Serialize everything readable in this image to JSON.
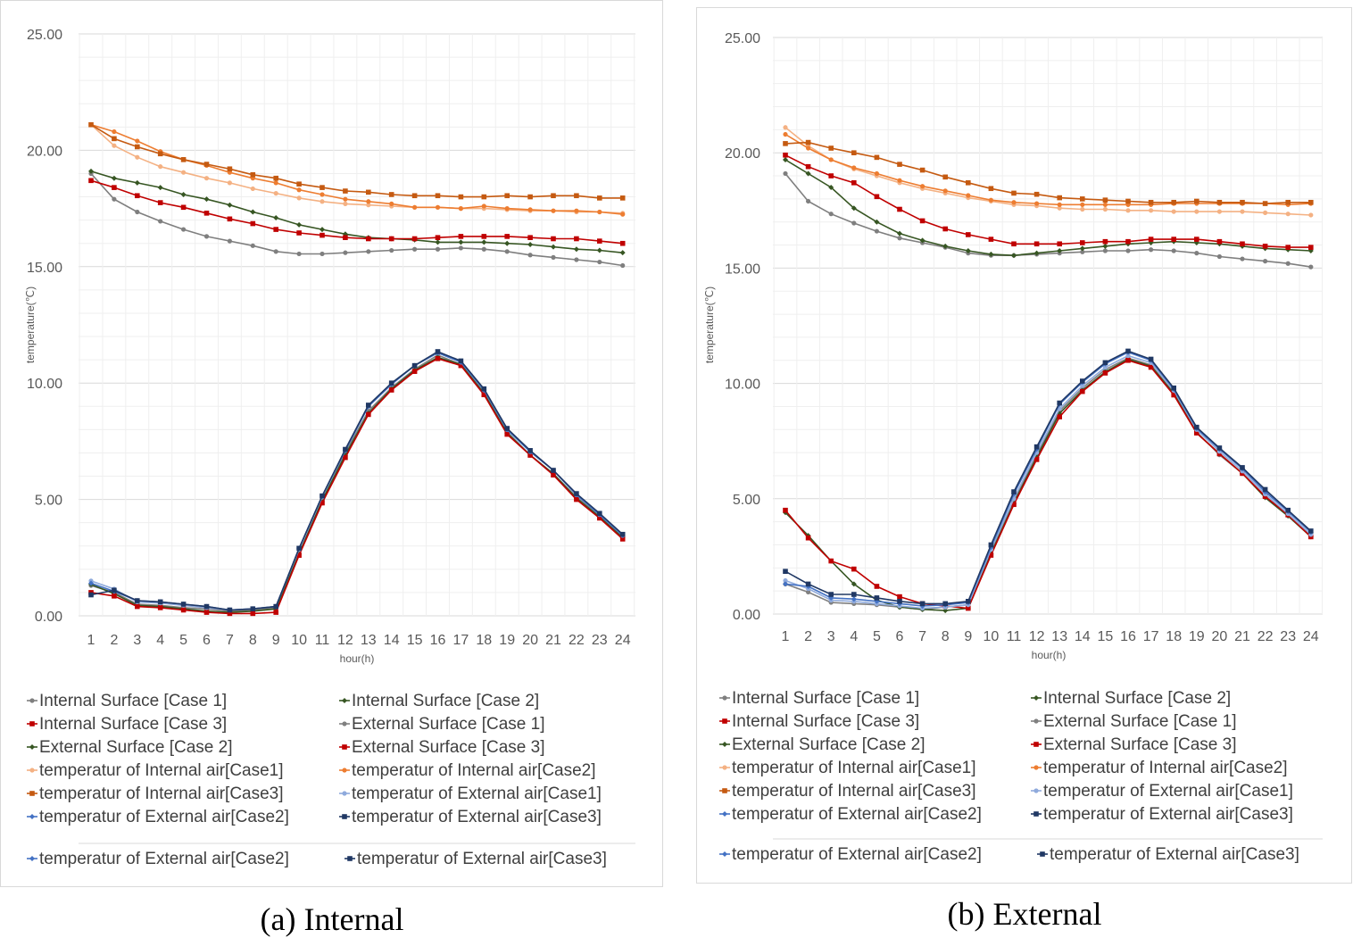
{
  "chart_data": [
    {
      "type": "line",
      "caption": "(a) Internal",
      "xlabel": "hour(h)",
      "ylabel": "temperature(℃)",
      "ylim": [
        0,
        25
      ],
      "yticks": [
        "0.00",
        "5.00",
        "10.00",
        "15.00",
        "20.00",
        "25.00"
      ],
      "categories": [
        "1",
        "2",
        "3",
        "4",
        "5",
        "6",
        "7",
        "8",
        "9",
        "10",
        "11",
        "12",
        "13",
        "14",
        "15",
        "16",
        "17",
        "18",
        "19",
        "20",
        "21",
        "22",
        "23",
        "24"
      ],
      "legend_extra": [
        "temperatur of External air[Case2]",
        "temperatur of External air[Case3]"
      ],
      "series": [
        {
          "name": "Internal Surface [Case 1]",
          "color": "#7f7f7f",
          "marker": "circle",
          "values": [
            19.0,
            17.9,
            17.35,
            16.95,
            16.6,
            16.3,
            16.1,
            15.9,
            15.65,
            15.55,
            15.55,
            15.6,
            15.65,
            15.7,
            15.75,
            15.75,
            15.8,
            15.75,
            15.65,
            15.5,
            15.4,
            15.3,
            15.2,
            15.05
          ]
        },
        {
          "name": "Internal Surface [Case 2]",
          "color": "#375623",
          "marker": "diamond",
          "values": [
            19.1,
            18.8,
            18.6,
            18.4,
            18.1,
            17.9,
            17.65,
            17.35,
            17.1,
            16.8,
            16.6,
            16.4,
            16.25,
            16.2,
            16.15,
            16.05,
            16.05,
            16.05,
            16.0,
            15.95,
            15.85,
            15.75,
            15.7,
            15.6
          ]
        },
        {
          "name": "Internal Surface [Case 3]",
          "color": "#c00000",
          "marker": "square",
          "values": [
            18.7,
            18.4,
            18.05,
            17.75,
            17.55,
            17.3,
            17.05,
            16.85,
            16.6,
            16.45,
            16.35,
            16.25,
            16.2,
            16.2,
            16.2,
            16.25,
            16.3,
            16.3,
            16.3,
            16.25,
            16.2,
            16.2,
            16.1,
            16.0
          ]
        },
        {
          "name": "External Surface [Case 1]",
          "color": "#808080",
          "marker": "circle",
          "values": [
            1.3,
            1.0,
            0.5,
            0.45,
            0.35,
            0.3,
            0.2,
            0.25,
            0.35,
            2.7,
            5.0,
            7.0,
            8.8,
            9.8,
            10.6,
            11.2,
            10.8,
            9.6,
            7.9,
            6.9,
            6.1,
            5.1,
            4.3,
            3.4
          ]
        },
        {
          "name": "External Surface [Case 2]",
          "color": "#375623",
          "marker": "diamond",
          "values": [
            1.35,
            0.95,
            0.45,
            0.4,
            0.3,
            0.2,
            0.15,
            0.2,
            0.3,
            2.65,
            4.95,
            6.9,
            8.7,
            9.75,
            10.55,
            11.1,
            10.8,
            9.55,
            7.85,
            6.9,
            6.1,
            5.05,
            4.25,
            3.35
          ]
        },
        {
          "name": "External Surface [Case 3]",
          "color": "#c00000",
          "marker": "square",
          "values": [
            1.0,
            0.85,
            0.4,
            0.35,
            0.25,
            0.15,
            0.1,
            0.1,
            0.15,
            2.6,
            4.85,
            6.8,
            8.65,
            9.7,
            10.5,
            11.05,
            10.75,
            9.5,
            7.8,
            6.9,
            6.05,
            5.0,
            4.2,
            3.3
          ]
        },
        {
          "name": "temperatur of Internal air[Case1]",
          "color": "#f4b183",
          "marker": "circle",
          "values": [
            21.1,
            20.2,
            19.7,
            19.3,
            19.05,
            18.8,
            18.6,
            18.35,
            18.15,
            17.95,
            17.8,
            17.7,
            17.65,
            17.6,
            17.55,
            17.55,
            17.5,
            17.5,
            17.45,
            17.4,
            17.4,
            17.35,
            17.35,
            17.3
          ]
        },
        {
          "name": "temperatur of Internal air[Case2]",
          "color": "#ed7d31",
          "marker": "circle",
          "values": [
            21.1,
            20.8,
            20.4,
            19.95,
            19.6,
            19.35,
            19.05,
            18.8,
            18.6,
            18.3,
            18.1,
            17.9,
            17.8,
            17.7,
            17.55,
            17.55,
            17.5,
            17.6,
            17.5,
            17.45,
            17.4,
            17.4,
            17.35,
            17.25
          ]
        },
        {
          "name": "temperatur of Internal air[Case3]",
          "color": "#c55a11",
          "marker": "square",
          "values": [
            21.1,
            20.5,
            20.15,
            19.85,
            19.6,
            19.4,
            19.2,
            18.95,
            18.8,
            18.55,
            18.4,
            18.25,
            18.2,
            18.1,
            18.05,
            18.05,
            18.0,
            18.0,
            18.05,
            18.0,
            18.05,
            18.05,
            17.95,
            17.95
          ]
        },
        {
          "name": "temperatur of External air[Case1]",
          "color": "#8faadc",
          "marker": "circle",
          "values": [
            1.5,
            1.15,
            0.6,
            0.55,
            0.45,
            0.35,
            0.25,
            0.3,
            0.4,
            2.85,
            5.1,
            7.1,
            9.0,
            9.95,
            10.75,
            11.3,
            10.9,
            9.7,
            8.0,
            7.05,
            6.25,
            5.2,
            4.35,
            3.45
          ]
        },
        {
          "name": "temperatur of External air[Case2]",
          "color": "#4472c4",
          "marker": "diamond",
          "values": [
            1.4,
            1.05,
            0.65,
            0.6,
            0.5,
            0.4,
            0.25,
            0.3,
            0.4,
            2.9,
            5.15,
            7.1,
            9.0,
            9.95,
            10.75,
            11.3,
            10.9,
            9.7,
            8.0,
            7.05,
            6.25,
            5.2,
            4.35,
            3.45
          ]
        },
        {
          "name": "temperatur of External air[Case3]",
          "color": "#203864",
          "marker": "square",
          "values": [
            0.9,
            1.1,
            0.65,
            0.6,
            0.5,
            0.4,
            0.25,
            0.3,
            0.4,
            2.9,
            5.15,
            7.15,
            9.05,
            10.0,
            10.75,
            11.35,
            10.95,
            9.75,
            8.05,
            7.1,
            6.25,
            5.25,
            4.4,
            3.5
          ]
        }
      ]
    },
    {
      "type": "line",
      "caption": "(b) External",
      "xlabel": "hour(h)",
      "ylabel": "temperature(℃)",
      "ylim": [
        0,
        25
      ],
      "yticks": [
        "0.00",
        "5.00",
        "10.00",
        "15.00",
        "20.00",
        "25.00"
      ],
      "categories": [
        "1",
        "2",
        "3",
        "4",
        "5",
        "6",
        "7",
        "8",
        "9",
        "10",
        "11",
        "12",
        "13",
        "14",
        "15",
        "16",
        "17",
        "18",
        "19",
        "20",
        "21",
        "22",
        "23",
        "24"
      ],
      "legend_extra": [
        "temperatur of External air[Case2]",
        "temperatur of External air[Case3]"
      ],
      "series": [
        {
          "name": "Internal Surface [Case 1]",
          "color": "#7f7f7f",
          "marker": "circle",
          "values": [
            19.1,
            17.9,
            17.35,
            16.95,
            16.6,
            16.3,
            16.1,
            15.9,
            15.65,
            15.55,
            15.55,
            15.6,
            15.65,
            15.7,
            15.75,
            15.75,
            15.8,
            15.75,
            15.65,
            15.5,
            15.4,
            15.3,
            15.2,
            15.05
          ]
        },
        {
          "name": "Internal Surface [Case 2]",
          "color": "#375623",
          "marker": "diamond",
          "values": [
            19.7,
            19.1,
            18.5,
            17.6,
            17.0,
            16.5,
            16.2,
            15.95,
            15.75,
            15.6,
            15.55,
            15.65,
            15.75,
            15.85,
            15.95,
            16.05,
            16.1,
            16.15,
            16.1,
            16.05,
            15.95,
            15.85,
            15.8,
            15.75
          ]
        },
        {
          "name": "Internal Surface [Case 3]",
          "color": "#c00000",
          "marker": "square",
          "values": [
            19.9,
            19.4,
            19.0,
            18.7,
            18.1,
            17.55,
            17.05,
            16.7,
            16.45,
            16.25,
            16.05,
            16.05,
            16.05,
            16.1,
            16.15,
            16.15,
            16.25,
            16.25,
            16.25,
            16.15,
            16.05,
            15.95,
            15.9,
            15.9
          ]
        },
        {
          "name": "External Surface [Case 1]",
          "color": "#808080",
          "marker": "circle",
          "values": [
            1.3,
            0.95,
            0.5,
            0.45,
            0.4,
            0.3,
            0.2,
            0.3,
            0.4,
            2.7,
            4.9,
            6.9,
            8.8,
            9.8,
            10.6,
            11.1,
            10.8,
            9.6,
            7.9,
            6.9,
            6.1,
            5.1,
            4.3,
            3.4
          ]
        },
        {
          "name": "External Surface [Case 2]",
          "color": "#375623",
          "marker": "diamond",
          "values": [
            4.4,
            3.4,
            2.3,
            1.3,
            0.6,
            0.3,
            0.2,
            0.15,
            0.25,
            2.6,
            4.8,
            6.8,
            8.7,
            9.7,
            10.5,
            11.05,
            10.75,
            9.55,
            7.85,
            6.95,
            6.1,
            5.05,
            4.25,
            3.35
          ]
        },
        {
          "name": "External Surface [Case 3]",
          "color": "#c00000",
          "marker": "square",
          "values": [
            4.5,
            3.3,
            2.3,
            1.95,
            1.2,
            0.75,
            0.45,
            0.35,
            0.25,
            2.55,
            4.75,
            6.7,
            8.55,
            9.65,
            10.45,
            11.0,
            10.7,
            9.5,
            7.85,
            6.95,
            6.1,
            5.1,
            4.3,
            3.35
          ]
        },
        {
          "name": "temperatur of Internal air[Case1]",
          "color": "#f4b183",
          "marker": "circle",
          "values": [
            21.1,
            20.3,
            19.7,
            19.3,
            19.0,
            18.7,
            18.45,
            18.25,
            18.05,
            17.9,
            17.75,
            17.7,
            17.6,
            17.55,
            17.55,
            17.5,
            17.5,
            17.45,
            17.45,
            17.45,
            17.45,
            17.4,
            17.35,
            17.3
          ]
        },
        {
          "name": "temperatur of Internal air[Case2]",
          "color": "#ed7d31",
          "marker": "circle",
          "values": [
            20.8,
            20.2,
            19.7,
            19.35,
            19.1,
            18.8,
            18.55,
            18.35,
            18.15,
            17.95,
            17.85,
            17.8,
            17.75,
            17.75,
            17.75,
            17.75,
            17.75,
            17.8,
            17.8,
            17.8,
            17.8,
            17.8,
            17.75,
            17.8
          ]
        },
        {
          "name": "temperatur of Internal air[Case3]",
          "color": "#c55a11",
          "marker": "square",
          "values": [
            20.4,
            20.45,
            20.2,
            20.0,
            19.8,
            19.5,
            19.25,
            18.95,
            18.7,
            18.45,
            18.25,
            18.2,
            18.05,
            18.0,
            17.95,
            17.9,
            17.85,
            17.85,
            17.9,
            17.85,
            17.85,
            17.8,
            17.85,
            17.85
          ]
        },
        {
          "name": "temperatur of External air[Case1]",
          "color": "#8faadc",
          "marker": "circle",
          "values": [
            1.45,
            1.1,
            0.6,
            0.55,
            0.45,
            0.35,
            0.25,
            0.3,
            0.4,
            2.8,
            5.0,
            7.0,
            8.9,
            9.9,
            10.7,
            11.2,
            10.9,
            9.7,
            8.0,
            7.05,
            6.2,
            5.2,
            4.35,
            3.45
          ]
        },
        {
          "name": "temperatur of External air[Case2]",
          "color": "#4472c4",
          "marker": "diamond",
          "values": [
            1.3,
            1.2,
            0.7,
            0.65,
            0.55,
            0.45,
            0.35,
            0.4,
            0.5,
            2.9,
            5.2,
            7.15,
            9.1,
            10.05,
            10.85,
            11.35,
            11.0,
            9.75,
            8.05,
            7.15,
            6.3,
            5.3,
            4.45,
            3.55
          ]
        },
        {
          "name": "temperatur of External air[Case3]",
          "color": "#203864",
          "marker": "square",
          "values": [
            1.85,
            1.3,
            0.85,
            0.85,
            0.7,
            0.55,
            0.45,
            0.45,
            0.55,
            3.0,
            5.3,
            7.25,
            9.15,
            10.1,
            10.9,
            11.4,
            11.05,
            9.8,
            8.1,
            7.2,
            6.35,
            5.4,
            4.5,
            3.6
          ]
        }
      ]
    }
  ]
}
